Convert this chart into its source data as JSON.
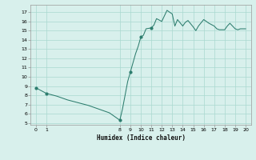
{
  "xlabel": "Humidex (Indice chaleur)",
  "xlim": [
    -0.5,
    20.5
  ],
  "ylim": [
    4.8,
    17.8
  ],
  "yticks": [
    5,
    6,
    7,
    8,
    9,
    10,
    11,
    12,
    13,
    14,
    15,
    16,
    17
  ],
  "xticks": [
    0,
    1,
    8,
    9,
    10,
    11,
    12,
    13,
    14,
    15,
    16,
    17,
    18,
    19,
    20
  ],
  "line_color": "#2d7d6e",
  "bg_color": "#d8f0ec",
  "grid_color": "#aad8d0",
  "x": [
    0,
    1,
    2,
    3,
    4,
    5,
    6,
    7,
    8,
    8.25,
    8.5,
    8.75,
    9,
    9.25,
    9.5,
    9.75,
    10,
    10.25,
    10.5,
    11,
    11.25,
    11.5,
    12,
    12.25,
    12.5,
    13,
    13.25,
    13.5,
    14,
    14.25,
    14.5,
    15,
    15.25,
    15.5,
    16,
    16.25,
    16.5,
    17,
    17.25,
    17.5,
    18,
    18.25,
    18.5,
    19,
    19.25,
    19.5,
    20
  ],
  "y": [
    8.8,
    8.2,
    7.9,
    7.5,
    7.2,
    6.9,
    6.5,
    6.1,
    5.3,
    6.5,
    8.0,
    9.5,
    10.5,
    11.5,
    12.5,
    13.3,
    14.3,
    14.5,
    15.2,
    15.3,
    15.6,
    16.3,
    16.0,
    16.6,
    17.2,
    16.8,
    15.5,
    16.2,
    15.5,
    15.9,
    16.1,
    15.4,
    15.0,
    15.5,
    16.2,
    16.0,
    15.8,
    15.5,
    15.2,
    15.1,
    15.1,
    15.5,
    15.8,
    15.2,
    15.1,
    15.2,
    15.2
  ],
  "marker_x": [
    0,
    1,
    8,
    9,
    10,
    11
  ],
  "marker_y": [
    8.8,
    8.2,
    5.3,
    10.5,
    14.3,
    15.3
  ]
}
